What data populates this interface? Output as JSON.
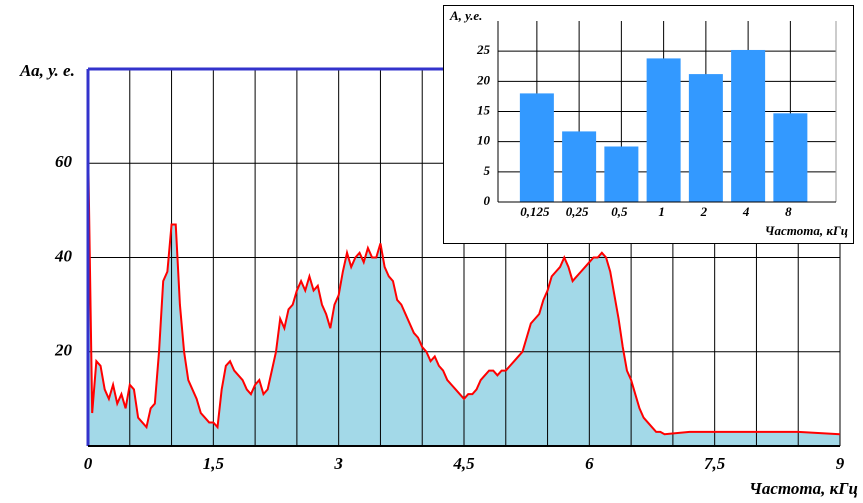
{
  "chart_data": [
    {
      "type": "area",
      "ylabel": "Аа, у. е.",
      "xlabel": "Частота, кГц",
      "x": [
        0,
        0.05,
        0.1,
        0.15,
        0.2,
        0.25,
        0.3,
        0.35,
        0.4,
        0.45,
        0.5,
        0.55,
        0.6,
        0.65,
        0.7,
        0.75,
        0.8,
        0.85,
        0.9,
        0.95,
        1,
        1.05,
        1.1,
        1.15,
        1.2,
        1.25,
        1.3,
        1.35,
        1.4,
        1.45,
        1.5,
        1.55,
        1.6,
        1.65,
        1.7,
        1.75,
        1.8,
        1.85,
        1.9,
        1.95,
        2,
        2.05,
        2.1,
        2.15,
        2.2,
        2.25,
        2.3,
        2.35,
        2.4,
        2.45,
        2.5,
        2.55,
        2.6,
        2.65,
        2.7,
        2.75,
        2.8,
        2.85,
        2.9,
        2.95,
        3,
        3.05,
        3.1,
        3.15,
        3.2,
        3.25,
        3.3,
        3.35,
        3.4,
        3.45,
        3.5,
        3.55,
        3.6,
        3.65,
        3.7,
        3.75,
        3.8,
        3.85,
        3.9,
        3.95,
        4,
        4.05,
        4.1,
        4.15,
        4.2,
        4.25,
        4.3,
        4.35,
        4.4,
        4.45,
        4.5,
        4.55,
        4.6,
        4.65,
        4.7,
        4.75,
        4.8,
        4.85,
        4.9,
        4.95,
        5,
        5.05,
        5.1,
        5.15,
        5.2,
        5.25,
        5.3,
        5.35,
        5.4,
        5.45,
        5.5,
        5.55,
        5.6,
        5.65,
        5.7,
        5.75,
        5.8,
        5.85,
        5.9,
        5.95,
        6,
        6.05,
        6.1,
        6.15,
        6.2,
        6.25,
        6.3,
        6.35,
        6.4,
        6.45,
        6.5,
        6.55,
        6.6,
        6.65,
        6.7,
        6.75,
        6.8,
        6.85,
        6.9,
        7.2,
        7.5,
        8,
        8.5,
        9
      ],
      "values": [
        65,
        7,
        18,
        17,
        12,
        10,
        13,
        9,
        11,
        8,
        13,
        12,
        6,
        5,
        4,
        8,
        9,
        20,
        35,
        37,
        47,
        47,
        30,
        20,
        14,
        12,
        10,
        7,
        6,
        5,
        5,
        4,
        12,
        17,
        18,
        16,
        15,
        14,
        12,
        11,
        13,
        14,
        11,
        12,
        16,
        20,
        27,
        25,
        29,
        30,
        33,
        35,
        33,
        36,
        33,
        34,
        30,
        28,
        25,
        30,
        32,
        37,
        41,
        38,
        40,
        41,
        39,
        42,
        40,
        40,
        43,
        38,
        36,
        35,
        31,
        30,
        28,
        26,
        24,
        23,
        21,
        20,
        18,
        19,
        17,
        16,
        14,
        13,
        12,
        11,
        10,
        11,
        11,
        12,
        14,
        15,
        16,
        16,
        15,
        16,
        16,
        17,
        18,
        19,
        20,
        23,
        26,
        27,
        28,
        31,
        33,
        36,
        37,
        38,
        40,
        38,
        35,
        36,
        37,
        38,
        39,
        40,
        40,
        41,
        40,
        37,
        32,
        27,
        21,
        16,
        14,
        11,
        8,
        6,
        5,
        4,
        3,
        3,
        2.5,
        3,
        3,
        3,
        3,
        2.5
      ],
      "color": "#ff0000",
      "fill_color": "#a3d9e8",
      "xlim": [
        0,
        9
      ],
      "ylim": [
        0,
        80
      ],
      "xticks": [
        0,
        {
          "value": 1.5,
          "label": "1,5"
        },
        3,
        {
          "value": 4.5,
          "label": "4,5"
        },
        6,
        {
          "value": 7.5,
          "label": "7,5"
        },
        9
      ],
      "xminor": [
        0.5,
        1,
        2,
        2.5,
        3.5,
        4,
        5,
        5.5,
        6.5,
        7,
        8,
        8.5
      ],
      "yticks": [
        20,
        40,
        60
      ],
      "grid": true
    },
    {
      "type": "bar",
      "ylabel": "А, у.е.",
      "xlabel": "Частота, кГц",
      "categories": [
        "0,125",
        "0,25",
        "0,5",
        "1",
        "2",
        "4",
        "8"
      ],
      "values": [
        18,
        11.7,
        9.2,
        23.8,
        21.2,
        25.2,
        14.7
      ],
      "color": "#3399ff",
      "ylim": [
        0,
        30
      ],
      "yticks": [
        0,
        5,
        10,
        15,
        20,
        25
      ],
      "grid": true
    }
  ]
}
